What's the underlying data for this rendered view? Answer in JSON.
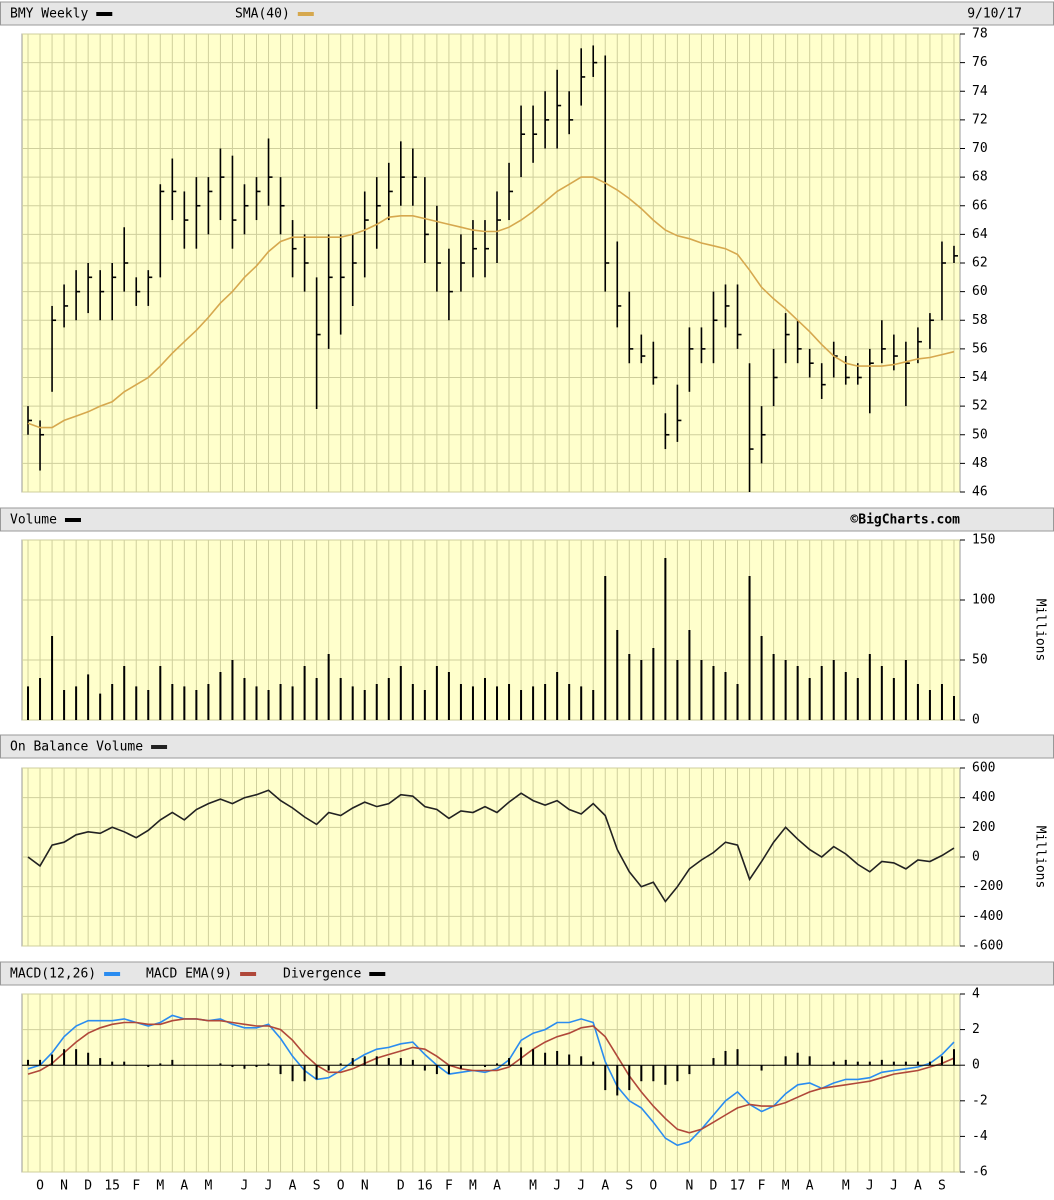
{
  "chart_data": [
    {
      "type": "ohlc",
      "date": "9/10/17",
      "ylim": [
        46,
        78
      ],
      "yticks": [
        46,
        48,
        50,
        52,
        54,
        56,
        58,
        60,
        62,
        64,
        66,
        68,
        70,
        72,
        74,
        76,
        78
      ],
      "grid": true,
      "series": [
        {
          "name": "BMY Weekly",
          "color": "#000000",
          "high": [
            52,
            51,
            59,
            60.5,
            61.5,
            62,
            61.5,
            62,
            64.5,
            61,
            61.5,
            67.5,
            69.3,
            67,
            68,
            68,
            70,
            69.5,
            67.5,
            68,
            70.7,
            68,
            65,
            64,
            61,
            64,
            64,
            64,
            67,
            68,
            69,
            70.5,
            70,
            68,
            66,
            63,
            64,
            65,
            65,
            67,
            69,
            73,
            73,
            74,
            75.5,
            74,
            77,
            77.2,
            76.5,
            63.5,
            60,
            57,
            56.5,
            51.5,
            53.5,
            57.5,
            57.5,
            60,
            60.5,
            60.5,
            55,
            52,
            56,
            58.5,
            58,
            56,
            55,
            56.5,
            55.5,
            55,
            56,
            58,
            57,
            56.5,
            57.5,
            58.5,
            63.5,
            63.2
          ],
          "low": [
            50,
            47.5,
            53,
            57.5,
            58,
            58.5,
            58,
            58,
            60,
            59,
            59,
            61,
            65,
            63,
            63,
            64,
            65,
            63,
            64,
            65,
            66,
            64,
            61,
            60,
            51.8,
            56,
            57,
            59,
            61,
            63,
            65,
            66,
            66,
            62,
            60,
            58,
            60,
            61,
            61,
            62,
            65,
            68,
            69,
            70,
            70,
            71,
            73,
            75,
            60,
            57.5,
            55,
            55,
            53.5,
            49,
            49.5,
            53,
            55,
            55,
            57.5,
            56,
            46,
            48,
            52,
            55,
            55,
            54,
            52.5,
            54,
            53.5,
            53.5,
            51.5,
            55,
            54.5,
            52,
            55,
            56,
            58,
            62
          ],
          "close": [
            51,
            50,
            58,
            59,
            60,
            61,
            60,
            61,
            62,
            60,
            61,
            67,
            67,
            65,
            66,
            67,
            68,
            65,
            66,
            67,
            68,
            66,
            63,
            62,
            57,
            61,
            61,
            62,
            65,
            66,
            67,
            68,
            68,
            64,
            62,
            60,
            62,
            63,
            63,
            65,
            67,
            71,
            71,
            72,
            73,
            72,
            75,
            76,
            62,
            59,
            56,
            55.5,
            54,
            50,
            51,
            56,
            56,
            58,
            59,
            57,
            49,
            50,
            54,
            57,
            56,
            55,
            53.5,
            55.5,
            54,
            54,
            55,
            56,
            55.5,
            55,
            56.5,
            58,
            62,
            62.5
          ]
        },
        {
          "name": "SMA(40)",
          "color": "#d6a84e",
          "type": "line",
          "values": [
            50.8,
            50.5,
            50.5,
            51,
            51.3,
            51.6,
            52,
            52.3,
            53,
            53.5,
            54,
            54.8,
            55.7,
            56.5,
            57.3,
            58.2,
            59.2,
            60,
            61,
            61.8,
            62.8,
            63.5,
            63.8,
            63.8,
            63.8,
            63.8,
            63.8,
            64,
            64.3,
            64.7,
            65.2,
            65.3,
            65.3,
            65.1,
            64.9,
            64.7,
            64.5,
            64.3,
            64.2,
            64.2,
            64.5,
            65,
            65.6,
            66.3,
            67,
            67.5,
            68,
            68,
            67.6,
            67.1,
            66.5,
            65.8,
            65,
            64.3,
            63.9,
            63.7,
            63.4,
            63.2,
            63,
            62.6,
            61.5,
            60.3,
            59.5,
            58.8,
            58,
            57.2,
            56.3,
            55.5,
            55,
            54.8,
            54.8,
            54.8,
            54.9,
            55.1,
            55.3,
            55.4,
            55.6,
            55.8
          ]
        }
      ]
    },
    {
      "type": "bar",
      "annotation": "©BigCharts.com",
      "ylabel": "Millions",
      "ylim": [
        0,
        150
      ],
      "yticks": [
        0,
        50,
        100,
        150
      ],
      "grid": true,
      "series": [
        {
          "name": "Volume",
          "color": "#000000",
          "values": [
            28,
            35,
            70,
            25,
            28,
            38,
            22,
            30,
            45,
            28,
            25,
            45,
            30,
            28,
            25,
            30,
            40,
            50,
            35,
            28,
            25,
            30,
            28,
            45,
            35,
            55,
            35,
            28,
            25,
            30,
            35,
            45,
            30,
            25,
            45,
            40,
            30,
            28,
            35,
            28,
            30,
            25,
            28,
            30,
            40,
            30,
            28,
            25,
            120,
            75,
            55,
            50,
            60,
            135,
            50,
            75,
            50,
            45,
            40,
            30,
            120,
            70,
            55,
            50,
            45,
            35,
            45,
            50,
            40,
            35,
            55,
            45,
            35,
            50,
            30,
            25,
            30,
            20
          ]
        }
      ]
    },
    {
      "type": "line",
      "ylabel": "Millions",
      "ylim": [
        -600,
        600
      ],
      "yticks": [
        -600,
        -400,
        -200,
        0,
        200,
        400,
        600
      ],
      "grid": true,
      "series": [
        {
          "name": "On Balance Volume",
          "color": "#222222",
          "values": [
            0,
            -60,
            80,
            100,
            150,
            170,
            160,
            200,
            170,
            130,
            180,
            250,
            300,
            250,
            320,
            360,
            390,
            360,
            400,
            420,
            450,
            380,
            330,
            270,
            220,
            300,
            280,
            330,
            370,
            340,
            360,
            420,
            410,
            340,
            320,
            260,
            310,
            300,
            340,
            300,
            370,
            430,
            380,
            350,
            380,
            320,
            290,
            360,
            280,
            50,
            -100,
            -200,
            -170,
            -300,
            -200,
            -80,
            -20,
            30,
            100,
            80,
            -150,
            -30,
            100,
            200,
            120,
            50,
            0,
            70,
            20,
            -50,
            -100,
            -30,
            -40,
            -80,
            -20,
            -30,
            10,
            60
          ]
        }
      ]
    },
    {
      "type": "line",
      "ylim": [
        -6,
        4
      ],
      "yticks": [
        -6,
        -4,
        -2,
        0,
        2,
        4
      ],
      "grid": true,
      "categories": [
        null,
        "O",
        null,
        "N",
        null,
        "D",
        null,
        "15",
        null,
        "F",
        null,
        "M",
        null,
        "A",
        null,
        "M",
        null,
        null,
        "J",
        null,
        "J",
        null,
        "A",
        null,
        "S",
        null,
        "O",
        null,
        "N",
        null,
        null,
        "D",
        null,
        "16",
        null,
        "F",
        null,
        "M",
        null,
        "A",
        null,
        null,
        "M",
        null,
        "J",
        null,
        "J",
        null,
        "A",
        null,
        "S",
        null,
        "O",
        null,
        null,
        "N",
        null,
        "D",
        null,
        "17",
        null,
        "F",
        null,
        "M",
        null,
        "A",
        null,
        null,
        "M",
        null,
        "J",
        null,
        "J",
        null,
        "A",
        null,
        "S",
        null
      ],
      "series": [
        {
          "name": "MACD(12,26)",
          "color": "#2a8cf0",
          "values": [
            -0.2,
            0,
            0.7,
            1.6,
            2.2,
            2.5,
            2.5,
            2.5,
            2.6,
            2.4,
            2.2,
            2.4,
            2.8,
            2.6,
            2.6,
            2.5,
            2.6,
            2.3,
            2.1,
            2.1,
            2.3,
            1.5,
            0.5,
            -0.3,
            -0.8,
            -0.7,
            -0.3,
            0.2,
            0.6,
            0.9,
            1.0,
            1.2,
            1.3,
            0.6,
            0,
            -0.5,
            -0.4,
            -0.3,
            -0.4,
            -0.2,
            0.3,
            1.4,
            1.8,
            2.0,
            2.4,
            2.4,
            2.6,
            2.4,
            0.2,
            -1.2,
            -2.0,
            -2.4,
            -3.2,
            -4.1,
            -4.5,
            -4.3,
            -3.6,
            -2.8,
            -2.0,
            -1.5,
            -2.2,
            -2.6,
            -2.3,
            -1.6,
            -1.1,
            -1.0,
            -1.3,
            -1.0,
            -0.8,
            -0.8,
            -0.7,
            -0.4,
            -0.3,
            -0.2,
            -0.1,
            0.1,
            0.6,
            1.3
          ]
        },
        {
          "name": "MACD EMA(9)",
          "color": "#b0483a",
          "values": [
            -0.5,
            -0.3,
            0.1,
            0.7,
            1.3,
            1.8,
            2.1,
            2.3,
            2.4,
            2.4,
            2.3,
            2.3,
            2.5,
            2.6,
            2.6,
            2.5,
            2.5,
            2.4,
            2.3,
            2.2,
            2.2,
            2.0,
            1.4,
            0.6,
            0,
            -0.4,
            -0.4,
            -0.2,
            0.1,
            0.4,
            0.6,
            0.8,
            1.0,
            0.9,
            0.5,
            0,
            -0.2,
            -0.3,
            -0.3,
            -0.3,
            -0.1,
            0.4,
            0.9,
            1.3,
            1.6,
            1.8,
            2.1,
            2.2,
            1.6,
            0.5,
            -0.6,
            -1.5,
            -2.3,
            -3.0,
            -3.6,
            -3.8,
            -3.6,
            -3.2,
            -2.8,
            -2.4,
            -2.2,
            -2.3,
            -2.3,
            -2.1,
            -1.8,
            -1.5,
            -1.3,
            -1.2,
            -1.1,
            -1.0,
            -0.9,
            -0.7,
            -0.5,
            -0.4,
            -0.3,
            -0.1,
            0.1,
            0.4
          ]
        },
        {
          "name": "Divergence",
          "color": "#000000",
          "type": "bar",
          "values": [
            0.3,
            0.3,
            0.6,
            0.9,
            0.9,
            0.7,
            0.4,
            0.2,
            0.2,
            0,
            -0.1,
            0.1,
            0.3,
            0,
            0,
            0,
            0.1,
            -0.1,
            -0.2,
            -0.1,
            0.1,
            -0.5,
            -0.9,
            -0.9,
            -0.8,
            -0.3,
            0.1,
            0.4,
            0.5,
            0.5,
            0.4,
            0.4,
            0.3,
            -0.3,
            -0.5,
            -0.5,
            -0.2,
            0,
            -0.1,
            0.1,
            0.4,
            1.0,
            0.9,
            0.7,
            0.8,
            0.6,
            0.5,
            0.2,
            -1.4,
            -1.7,
            -1.4,
            -0.9,
            -0.9,
            -1.1,
            -0.9,
            -0.5,
            0,
            0.4,
            0.8,
            0.9,
            0,
            -0.3,
            0,
            0.5,
            0.7,
            0.5,
            0,
            0.2,
            0.3,
            0.2,
            0.2,
            0.3,
            0.2,
            0.2,
            0.2,
            0.2,
            0.5,
            0.9
          ]
        }
      ]
    }
  ]
}
